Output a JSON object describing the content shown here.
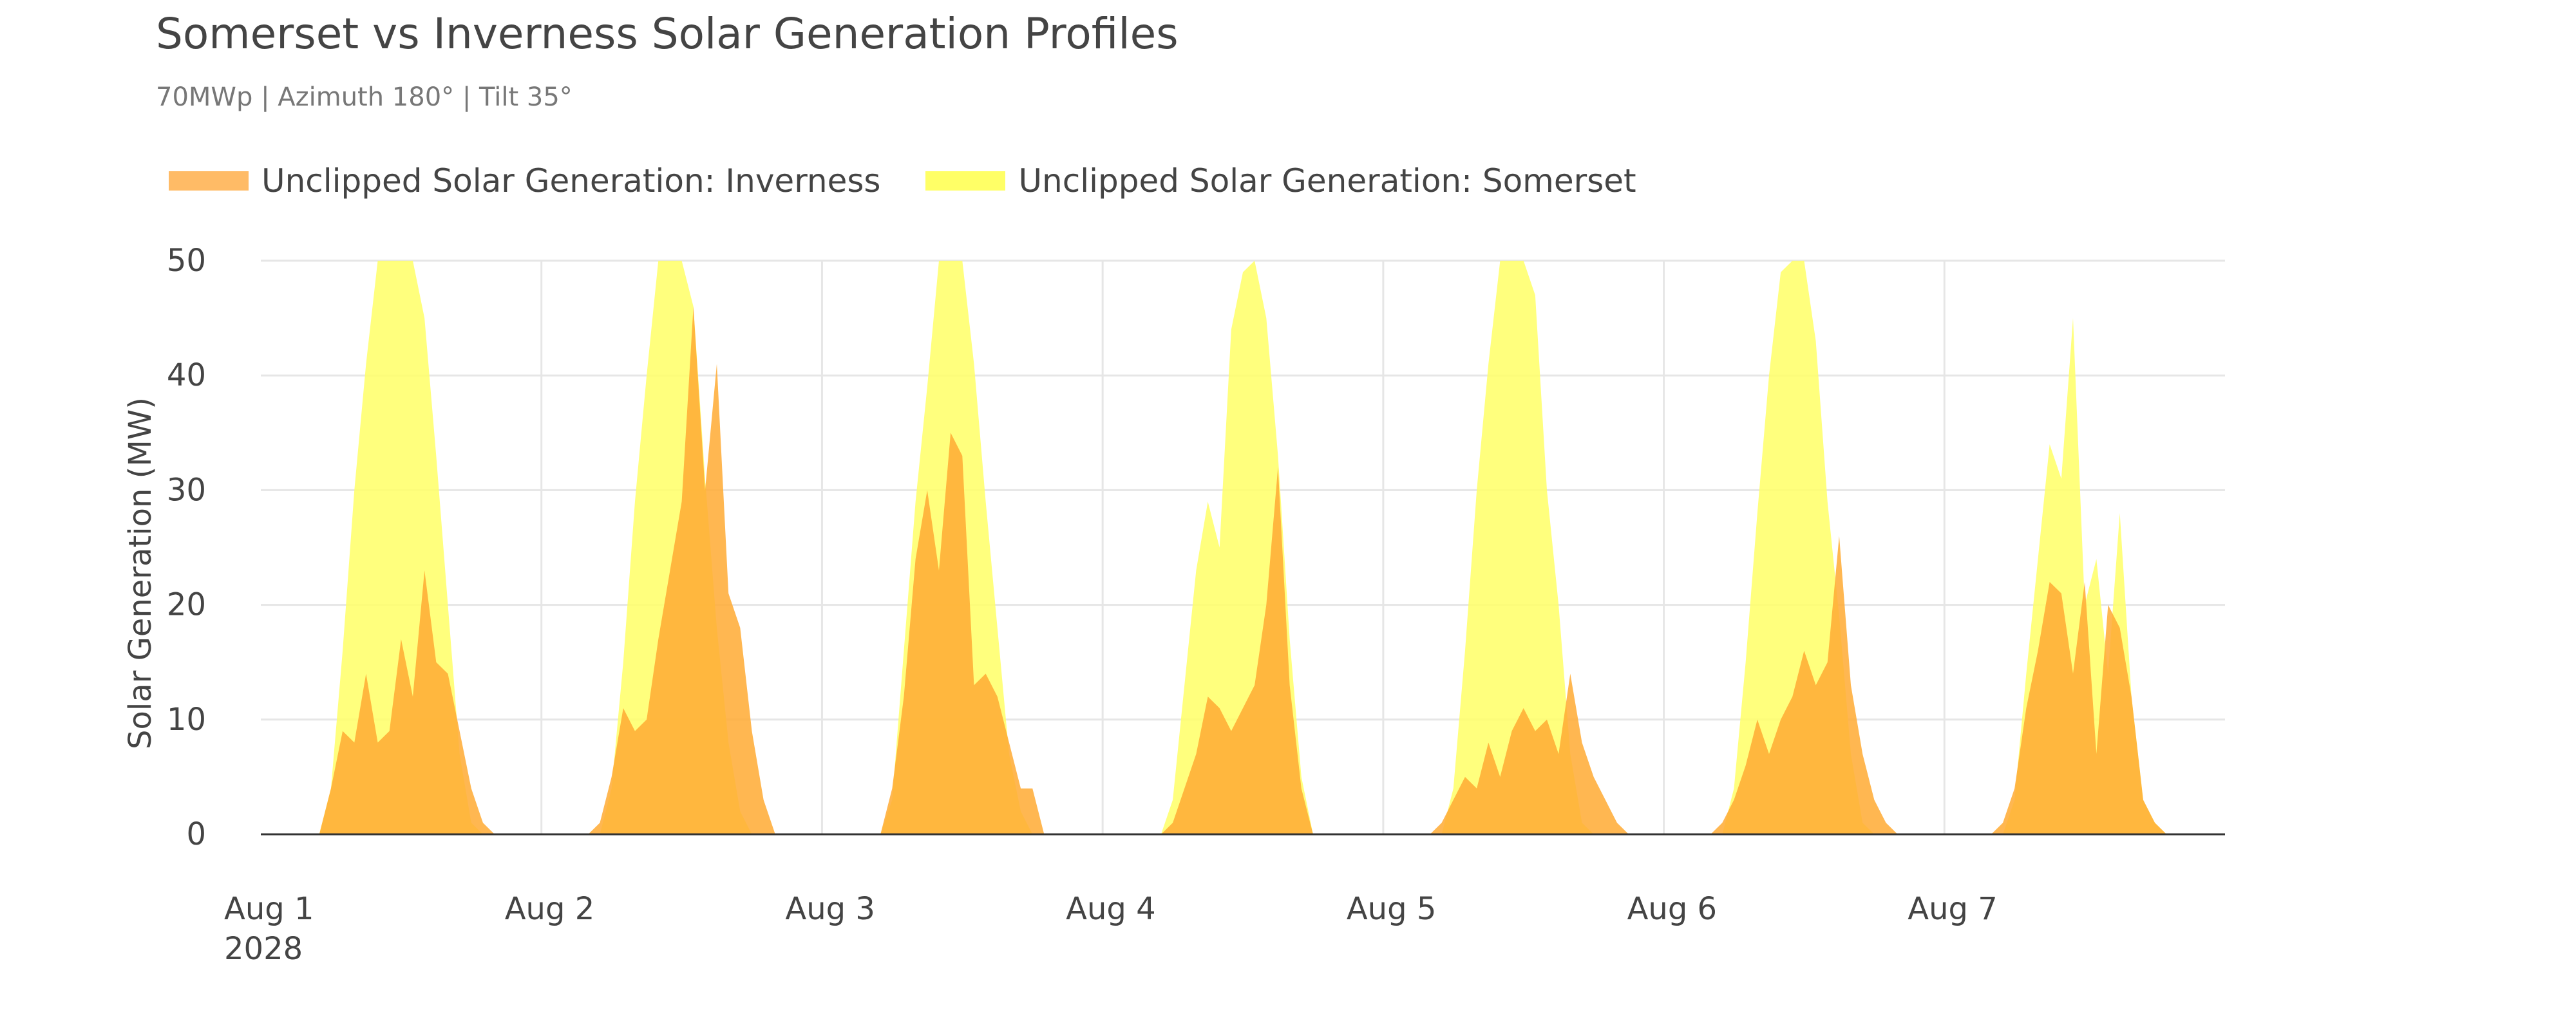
{
  "chart_data": {
    "type": "area",
    "title": "Somerset vs Inverness Solar Generation Profiles",
    "subtitle": "70MWp | Azimuth 180° | Tilt 35°",
    "ylabel": "Solar Generation (MW)",
    "xlabel": "",
    "ylim": [
      0,
      50
    ],
    "xlim": [
      "2028-08-01T00:00",
      "2028-08-08T00:00"
    ],
    "y_ticks": [
      0,
      10,
      20,
      30,
      40,
      50
    ],
    "x_ticks": [
      {
        "label": "Aug 1",
        "sublabel": "2028",
        "date": "2028-08-01"
      },
      {
        "label": "Aug 2",
        "sublabel": "",
        "date": "2028-08-02"
      },
      {
        "label": "Aug 3",
        "sublabel": "",
        "date": "2028-08-03"
      },
      {
        "label": "Aug 4",
        "sublabel": "",
        "date": "2028-08-04"
      },
      {
        "label": "Aug 5",
        "sublabel": "",
        "date": "2028-08-05"
      },
      {
        "label": "Aug 6",
        "sublabel": "",
        "date": "2028-08-06"
      },
      {
        "label": "Aug 7",
        "sublabel": "",
        "date": "2028-08-07"
      }
    ],
    "grid": true,
    "legend_position": "top-left",
    "series": [
      {
        "name": "Unclipped Solar Generation: Somerset",
        "color": "#ffff66",
        "points": [
          [
            "2028-08-01T05:00",
            0
          ],
          [
            "2028-08-01T06:00",
            4
          ],
          [
            "2028-08-01T07:00",
            16
          ],
          [
            "2028-08-01T08:00",
            30
          ],
          [
            "2028-08-01T09:00",
            41
          ],
          [
            "2028-08-01T10:00",
            50
          ],
          [
            "2028-08-01T11:00",
            50
          ],
          [
            "2028-08-01T12:00",
            50
          ],
          [
            "2028-08-01T13:00",
            50
          ],
          [
            "2028-08-01T14:00",
            45
          ],
          [
            "2028-08-01T15:00",
            33
          ],
          [
            "2028-08-01T16:00",
            20
          ],
          [
            "2028-08-01T17:00",
            7
          ],
          [
            "2028-08-01T18:00",
            1
          ],
          [
            "2028-08-01T19:00",
            0
          ],
          [
            "2028-08-02T05:00",
            0
          ],
          [
            "2028-08-02T06:00",
            4
          ],
          [
            "2028-08-02T07:00",
            15
          ],
          [
            "2028-08-02T08:00",
            29
          ],
          [
            "2028-08-02T09:00",
            40
          ],
          [
            "2028-08-02T10:00",
            50
          ],
          [
            "2028-08-02T11:00",
            50
          ],
          [
            "2028-08-02T12:00",
            50
          ],
          [
            "2028-08-02T13:00",
            46
          ],
          [
            "2028-08-02T14:00",
            31
          ],
          [
            "2028-08-02T15:00",
            18
          ],
          [
            "2028-08-02T16:00",
            8
          ],
          [
            "2028-08-02T17:00",
            2
          ],
          [
            "2028-08-02T18:00",
            0
          ],
          [
            "2028-08-03T05:00",
            0
          ],
          [
            "2028-08-03T06:00",
            3
          ],
          [
            "2028-08-03T07:00",
            16
          ],
          [
            "2028-08-03T08:00",
            29
          ],
          [
            "2028-08-03T09:00",
            39
          ],
          [
            "2028-08-03T10:00",
            50
          ],
          [
            "2028-08-03T11:00",
            50
          ],
          [
            "2028-08-03T12:00",
            50
          ],
          [
            "2028-08-03T13:00",
            41
          ],
          [
            "2028-08-03T14:00",
            29
          ],
          [
            "2028-08-03T15:00",
            18
          ],
          [
            "2028-08-03T16:00",
            7
          ],
          [
            "2028-08-03T17:00",
            2
          ],
          [
            "2028-08-03T18:00",
            0
          ],
          [
            "2028-08-04T05:00",
            0
          ],
          [
            "2028-08-04T06:00",
            3
          ],
          [
            "2028-08-04T07:00",
            13
          ],
          [
            "2028-08-04T08:00",
            23
          ],
          [
            "2028-08-04T09:00",
            29
          ],
          [
            "2028-08-04T10:00",
            25
          ],
          [
            "2028-08-04T11:00",
            44
          ],
          [
            "2028-08-04T12:00",
            49
          ],
          [
            "2028-08-04T13:00",
            50
          ],
          [
            "2028-08-04T14:00",
            45
          ],
          [
            "2028-08-04T15:00",
            33
          ],
          [
            "2028-08-04T16:00",
            17
          ],
          [
            "2028-08-04T17:00",
            5
          ],
          [
            "2028-08-04T18:00",
            0
          ],
          [
            "2028-08-05T05:00",
            0
          ],
          [
            "2028-08-05T06:00",
            4
          ],
          [
            "2028-08-05T07:00",
            16
          ],
          [
            "2028-08-05T08:00",
            30
          ],
          [
            "2028-08-05T09:00",
            41
          ],
          [
            "2028-08-05T10:00",
            50
          ],
          [
            "2028-08-05T11:00",
            50
          ],
          [
            "2028-08-05T12:00",
            50
          ],
          [
            "2028-08-05T13:00",
            47
          ],
          [
            "2028-08-05T14:00",
            30
          ],
          [
            "2028-08-05T15:00",
            20
          ],
          [
            "2028-08-05T16:00",
            7
          ],
          [
            "2028-08-05T17:00",
            1
          ],
          [
            "2028-08-05T18:00",
            0
          ],
          [
            "2028-08-06T05:00",
            0
          ],
          [
            "2028-08-06T06:00",
            4
          ],
          [
            "2028-08-06T07:00",
            15
          ],
          [
            "2028-08-06T08:00",
            28
          ],
          [
            "2028-08-06T09:00",
            40
          ],
          [
            "2028-08-06T10:00",
            49
          ],
          [
            "2028-08-06T11:00",
            50
          ],
          [
            "2028-08-06T12:00",
            50
          ],
          [
            "2028-08-06T13:00",
            43
          ],
          [
            "2028-08-06T14:00",
            29
          ],
          [
            "2028-08-06T15:00",
            19
          ],
          [
            "2028-08-06T16:00",
            7
          ],
          [
            "2028-08-06T17:00",
            1
          ],
          [
            "2028-08-06T18:00",
            0
          ],
          [
            "2028-08-07T05:00",
            0
          ],
          [
            "2028-08-07T06:00",
            3
          ],
          [
            "2028-08-07T07:00",
            14
          ],
          [
            "2028-08-07T08:00",
            24
          ],
          [
            "2028-08-07T09:00",
            34
          ],
          [
            "2028-08-07T10:00",
            31
          ],
          [
            "2028-08-07T11:00",
            45
          ],
          [
            "2028-08-07T12:00",
            20
          ],
          [
            "2028-08-07T13:00",
            24
          ],
          [
            "2028-08-07T14:00",
            14
          ],
          [
            "2028-08-07T15:00",
            28
          ],
          [
            "2028-08-07T16:00",
            12
          ],
          [
            "2028-08-07T17:00",
            3
          ],
          [
            "2028-08-07T18:00",
            1
          ],
          [
            "2028-08-07T19:00",
            0
          ]
        ]
      },
      {
        "name": "Unclipped Solar Generation: Inverness",
        "color": "#ffaa33",
        "points": [
          [
            "2028-08-01T05:00",
            0
          ],
          [
            "2028-08-01T06:00",
            4
          ],
          [
            "2028-08-01T07:00",
            9
          ],
          [
            "2028-08-01T08:00",
            8
          ],
          [
            "2028-08-01T09:00",
            14
          ],
          [
            "2028-08-01T10:00",
            8
          ],
          [
            "2028-08-01T11:00",
            9
          ],
          [
            "2028-08-01T12:00",
            17
          ],
          [
            "2028-08-01T13:00",
            12
          ],
          [
            "2028-08-01T14:00",
            23
          ],
          [
            "2028-08-01T15:00",
            15
          ],
          [
            "2028-08-01T16:00",
            14
          ],
          [
            "2028-08-01T17:00",
            9
          ],
          [
            "2028-08-01T18:00",
            4
          ],
          [
            "2028-08-01T19:00",
            1
          ],
          [
            "2028-08-01T20:00",
            0
          ],
          [
            "2028-08-02T04:00",
            0
          ],
          [
            "2028-08-02T05:00",
            1
          ],
          [
            "2028-08-02T06:00",
            5
          ],
          [
            "2028-08-02T07:00",
            11
          ],
          [
            "2028-08-02T08:00",
            9
          ],
          [
            "2028-08-02T09:00",
            10
          ],
          [
            "2028-08-02T10:00",
            17
          ],
          [
            "2028-08-02T11:00",
            23
          ],
          [
            "2028-08-02T12:00",
            29
          ],
          [
            "2028-08-02T13:00",
            46
          ],
          [
            "2028-08-02T14:00",
            30
          ],
          [
            "2028-08-02T15:00",
            41
          ],
          [
            "2028-08-02T16:00",
            21
          ],
          [
            "2028-08-02T17:00",
            18
          ],
          [
            "2028-08-02T18:00",
            9
          ],
          [
            "2028-08-02T19:00",
            3
          ],
          [
            "2028-08-02T20:00",
            0
          ],
          [
            "2028-08-03T04:00",
            0
          ],
          [
            "2028-08-03T05:00",
            0
          ],
          [
            "2028-08-03T06:00",
            4
          ],
          [
            "2028-08-03T07:00",
            12
          ],
          [
            "2028-08-03T08:00",
            24
          ],
          [
            "2028-08-03T09:00",
            30
          ],
          [
            "2028-08-03T10:00",
            23
          ],
          [
            "2028-08-03T11:00",
            35
          ],
          [
            "2028-08-03T12:00",
            33
          ],
          [
            "2028-08-03T13:00",
            13
          ],
          [
            "2028-08-03T14:00",
            14
          ],
          [
            "2028-08-03T15:00",
            12
          ],
          [
            "2028-08-03T16:00",
            8
          ],
          [
            "2028-08-03T17:00",
            4
          ],
          [
            "2028-08-03T18:00",
            4
          ],
          [
            "2028-08-03T19:00",
            0
          ],
          [
            "2028-08-04T05:00",
            0
          ],
          [
            "2028-08-04T06:00",
            1
          ],
          [
            "2028-08-04T07:00",
            4
          ],
          [
            "2028-08-04T08:00",
            7
          ],
          [
            "2028-08-04T09:00",
            12
          ],
          [
            "2028-08-04T10:00",
            11
          ],
          [
            "2028-08-04T11:00",
            9
          ],
          [
            "2028-08-04T12:00",
            11
          ],
          [
            "2028-08-04T13:00",
            13
          ],
          [
            "2028-08-04T14:00",
            20
          ],
          [
            "2028-08-04T15:00",
            32
          ],
          [
            "2028-08-04T16:00",
            13
          ],
          [
            "2028-08-04T17:00",
            4
          ],
          [
            "2028-08-04T18:00",
            0
          ],
          [
            "2028-08-05T04:00",
            0
          ],
          [
            "2028-08-05T05:00",
            1
          ],
          [
            "2028-08-05T06:00",
            3
          ],
          [
            "2028-08-05T07:00",
            5
          ],
          [
            "2028-08-05T08:00",
            4
          ],
          [
            "2028-08-05T09:00",
            8
          ],
          [
            "2028-08-05T10:00",
            5
          ],
          [
            "2028-08-05T11:00",
            9
          ],
          [
            "2028-08-05T12:00",
            11
          ],
          [
            "2028-08-05T13:00",
            9
          ],
          [
            "2028-08-05T14:00",
            10
          ],
          [
            "2028-08-05T15:00",
            7
          ],
          [
            "2028-08-05T16:00",
            14
          ],
          [
            "2028-08-05T17:00",
            8
          ],
          [
            "2028-08-05T18:00",
            5
          ],
          [
            "2028-08-05T19:00",
            3
          ],
          [
            "2028-08-05T20:00",
            1
          ],
          [
            "2028-08-05T21:00",
            0
          ],
          [
            "2028-08-06T04:00",
            0
          ],
          [
            "2028-08-06T05:00",
            1
          ],
          [
            "2028-08-06T06:00",
            3
          ],
          [
            "2028-08-06T07:00",
            6
          ],
          [
            "2028-08-06T08:00",
            10
          ],
          [
            "2028-08-06T09:00",
            7
          ],
          [
            "2028-08-06T10:00",
            10
          ],
          [
            "2028-08-06T11:00",
            12
          ],
          [
            "2028-08-06T12:00",
            16
          ],
          [
            "2028-08-06T13:00",
            13
          ],
          [
            "2028-08-06T14:00",
            15
          ],
          [
            "2028-08-06T15:00",
            26
          ],
          [
            "2028-08-06T16:00",
            13
          ],
          [
            "2028-08-06T17:00",
            7
          ],
          [
            "2028-08-06T18:00",
            3
          ],
          [
            "2028-08-06T19:00",
            1
          ],
          [
            "2028-08-06T20:00",
            0
          ],
          [
            "2028-08-07T04:00",
            0
          ],
          [
            "2028-08-07T05:00",
            1
          ],
          [
            "2028-08-07T06:00",
            4
          ],
          [
            "2028-08-07T07:00",
            11
          ],
          [
            "2028-08-07T08:00",
            16
          ],
          [
            "2028-08-07T09:00",
            22
          ],
          [
            "2028-08-07T10:00",
            21
          ],
          [
            "2028-08-07T11:00",
            14
          ],
          [
            "2028-08-07T12:00",
            22
          ],
          [
            "2028-08-07T13:00",
            7
          ],
          [
            "2028-08-07T14:00",
            20
          ],
          [
            "2028-08-07T15:00",
            18
          ],
          [
            "2028-08-07T16:00",
            12
          ],
          [
            "2028-08-07T17:00",
            3
          ],
          [
            "2028-08-07T18:00",
            1
          ],
          [
            "2028-08-07T19:00",
            0
          ]
        ]
      }
    ]
  },
  "legend": [
    {
      "label": "Unclipped Solar Generation: Inverness",
      "color": "#ffbb66"
    },
    {
      "label": "Unclipped Solar Generation: Somerset",
      "color": "#ffff66"
    }
  ]
}
